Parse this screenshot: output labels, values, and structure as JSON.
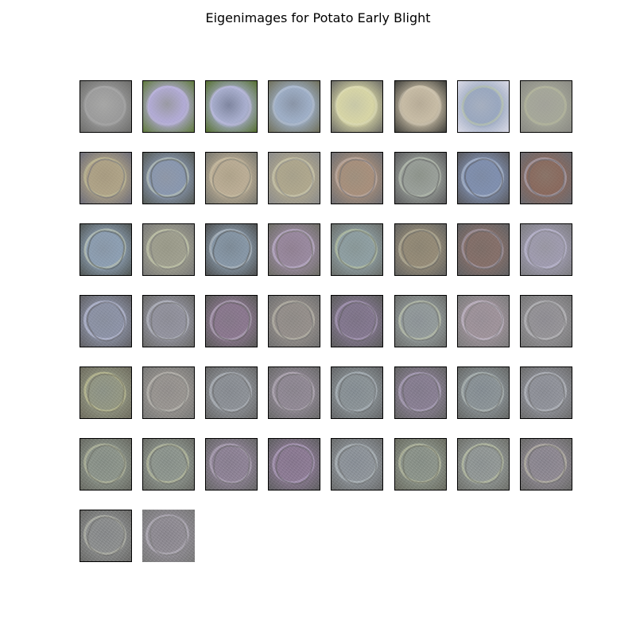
{
  "title": "Eigenimages for Potato Early Blight",
  "grid": {
    "columns": 8,
    "eigenimage_count": 50,
    "framed_count": 49
  },
  "palette": {
    "background": "#ffffff",
    "frame": "#000000",
    "base_gray": "#8f8f8d"
  },
  "eigenimages": [
    {
      "tone": "#a7a7a6",
      "edge": "#6d6d6b",
      "ring": "#b8b8b8",
      "tint": "#9c9c9c"
    },
    {
      "tone": "#9a9aa4",
      "edge": "#5f7a3a",
      "ring": "#c9c2e8",
      "tint": "#b3acd6"
    },
    {
      "tone": "#7f86a0",
      "edge": "#55702e",
      "ring": "#d2c9f0",
      "tint": "#aab0d0"
    },
    {
      "tone": "#8a95a8",
      "edge": "#70705a",
      "ring": "#c8d0e0",
      "tint": "#9fb0c8"
    },
    {
      "tone": "#c9c9a8",
      "edge": "#6b6b66",
      "ring": "#e6e6c8",
      "tint": "#d8d6a6"
    },
    {
      "tone": "#b8ad98",
      "edge": "#3e3e3a",
      "ring": "#d6cfbe",
      "tint": "#c8bda6"
    },
    {
      "tone": "#a6b0c0",
      "edge": "#dcdce8",
      "ring": "#d0dc9a",
      "tint": "#9aa8c0"
    },
    {
      "tone": "#a3a39a",
      "edge": "#8a8a84",
      "ring": "#c9cba4",
      "tint": "#a6a89a"
    },
    {
      "tone": "#a89c82",
      "edge": "#6c6c78",
      "ring": "#c8c49a",
      "tint": "#b0a488"
    },
    {
      "tone": "#8f98a8",
      "edge": "#555a55",
      "ring": "#c4d0c0",
      "tint": "#8a98b0"
    },
    {
      "tone": "#b0a48c",
      "edge": "#77776f",
      "ring": "#cfc4a8",
      "tint": "#bcae96"
    },
    {
      "tone": "#a8a28c",
      "edge": "#8c8c8c",
      "ring": "#d6d4b6",
      "tint": "#b0a88e"
    },
    {
      "tone": "#a0907e",
      "edge": "#6e6e72",
      "ring": "#cbb8b0",
      "tint": "#a8907c"
    },
    {
      "tone": "#8e948c",
      "edge": "#5a5a5c",
      "ring": "#c0c8b8",
      "tint": "#9aa09a"
    },
    {
      "tone": "#7e8ca6",
      "edge": "#58585c",
      "ring": "#b8c4d8",
      "tint": "#8090b0"
    },
    {
      "tone": "#8a7468",
      "edge": "#6a6a70",
      "ring": "#b8b4c8",
      "tint": "#8a6a5e"
    },
    {
      "tone": "#8a98a8",
      "edge": "#505654",
      "ring": "#c8d0b8",
      "tint": "#8ea0b4"
    },
    {
      "tone": "#9a9a8a",
      "edge": "#7a7a78",
      "ring": "#d4d8b8",
      "tint": "#a0a090"
    },
    {
      "tone": "#7e8c98",
      "edge": "#4e5050",
      "ring": "#c0c8d0",
      "tint": "#8898a8"
    },
    {
      "tone": "#928294",
      "edge": "#6e6e66",
      "ring": "#c8bcd8",
      "tint": "#9a8aa0"
    },
    {
      "tone": "#8a9898",
      "edge": "#6a6e6a",
      "ring": "#c4d0a8",
      "tint": "#90a0a4"
    },
    {
      "tone": "#8e8674",
      "edge": "#646462",
      "ring": "#c0bca4",
      "tint": "#968c78"
    },
    {
      "tone": "#7e6e68",
      "edge": "#626264",
      "ring": "#b0a8b8",
      "tint": "#86706a"
    },
    {
      "tone": "#9a98a4",
      "edge": "#7e7e82",
      "ring": "#c8c4e0",
      "tint": "#a09cb0"
    },
    {
      "tone": "#8a90a0",
      "edge": "#606064",
      "ring": "#c8cce8",
      "tint": "#8e94a8"
    },
    {
      "tone": "#8e8e98",
      "edge": "#6a6a68",
      "ring": "#c4c8d4",
      "tint": "#9494a0"
    },
    {
      "tone": "#86788a",
      "edge": "#5a5a58",
      "ring": "#c0b4c8",
      "tint": "#8c7890"
    },
    {
      "tone": "#908c88",
      "edge": "#707070",
      "ring": "#c4c2b4",
      "tint": "#96908c"
    },
    {
      "tone": "#7e7488",
      "edge": "#5c5c5c",
      "ring": "#b8a8c8",
      "tint": "#847890"
    },
    {
      "tone": "#8e9498",
      "edge": "#6c6e6c",
      "ring": "#c8d0b4",
      "tint": "#949c9c"
    },
    {
      "tone": "#9a9098",
      "edge": "#7c7c7c",
      "ring": "#d4c8dc",
      "tint": "#a0949c"
    },
    {
      "tone": "#908e94",
      "edge": "#777777",
      "ring": "#c8c8cc",
      "tint": "#969498"
    },
    {
      "tone": "#8e9488",
      "edge": "#6e6c5e",
      "ring": "#d0d09c",
      "tint": "#949884"
    },
    {
      "tone": "#94908e",
      "edge": "#7a7a78",
      "ring": "#c8c6c0",
      "tint": "#9a9692"
    },
    {
      "tone": "#888c92",
      "edge": "#686868",
      "ring": "#c0c4cc",
      "tint": "#8e9298"
    },
    {
      "tone": "#8c8690",
      "edge": "#6a6a6a",
      "ring": "#c4bcc8",
      "tint": "#928a96"
    },
    {
      "tone": "#868e94",
      "edge": "#646668",
      "ring": "#bcc4cc",
      "tint": "#8c9498"
    },
    {
      "tone": "#847c8e",
      "edge": "#646464",
      "ring": "#bcb0cc",
      "tint": "#8a8094"
    },
    {
      "tone": "#868e94",
      "edge": "#666866",
      "ring": "#c0c8c4",
      "tint": "#8c9498"
    },
    {
      "tone": "#8c8e96",
      "edge": "#6c6c6c",
      "ring": "#c4c8d0",
      "tint": "#92949c"
    },
    {
      "tone": "#889088",
      "edge": "#686a62",
      "ring": "#c4c8a8",
      "tint": "#8e968c"
    },
    {
      "tone": "#8a928c",
      "edge": "#6a6c66",
      "ring": "#c8cca8",
      "tint": "#909890"
    },
    {
      "tone": "#8a8092",
      "edge": "#666666",
      "ring": "#c0b4c8",
      "tint": "#908498"
    },
    {
      "tone": "#887890",
      "edge": "#5e5e60",
      "ring": "#bcaccc",
      "tint": "#8e7c96"
    },
    {
      "tone": "#8a9098",
      "edge": "#6a6c6c",
      "ring": "#c0c8cc",
      "tint": "#90969c"
    },
    {
      "tone": "#889088",
      "edge": "#6a6c60",
      "ring": "#c8ccac",
      "tint": "#8e968c"
    },
    {
      "tone": "#8e9494",
      "edge": "#6e706a",
      "ring": "#c8d0ac",
      "tint": "#949a98"
    },
    {
      "tone": "#8a8690",
      "edge": "#6a6a68",
      "ring": "#c8c4b0",
      "tint": "#908a94"
    },
    {
      "tone": "#888a8c",
      "edge": "#6a6a68",
      "ring": "#c4c6b8",
      "tint": "#8e9090"
    },
    {
      "tone": "#8c8890",
      "edge": "#7a7a7a",
      "ring": "#c4c0cc",
      "tint": "#928e96"
    }
  ]
}
